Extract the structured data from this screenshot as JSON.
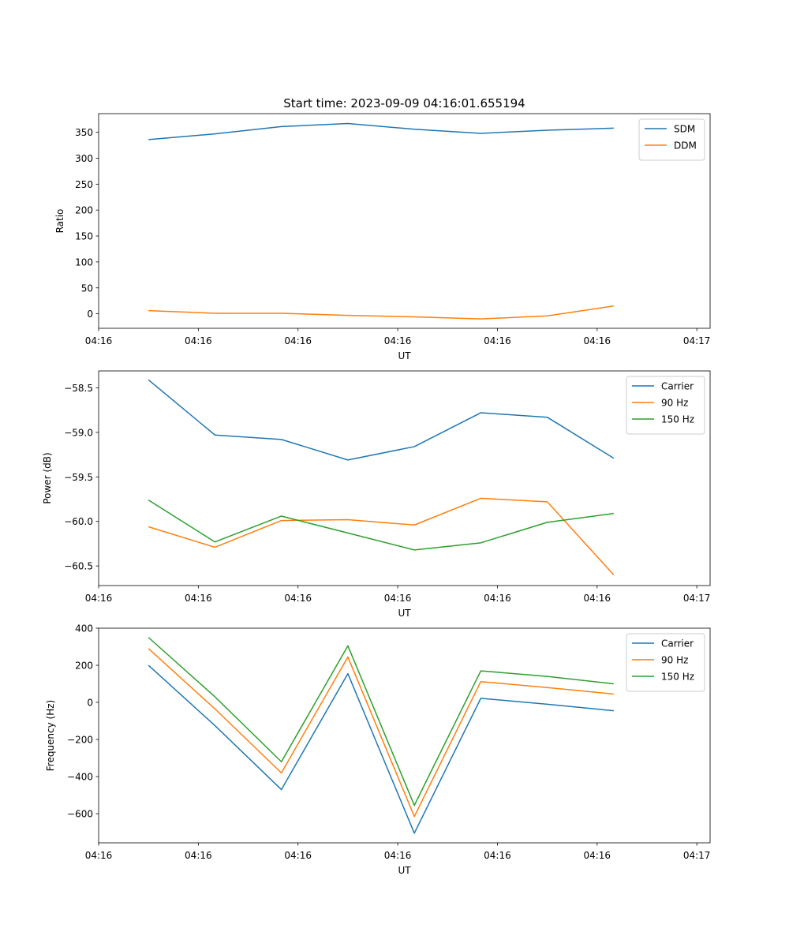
{
  "figure_title": "Start time: 2023-09-09 04:16:01.655194",
  "chart_data": [
    {
      "type": "line",
      "title": "Start time: 2023-09-09 04:16:01.655194",
      "xlabel": "UT",
      "ylabel": "Ratio",
      "x": [
        0,
        1,
        2,
        3,
        4,
        5,
        6,
        7
      ],
      "xlim": [
        -0.75,
        8.45
      ],
      "x_ticks": [
        -0.75,
        0.75,
        2.25,
        3.75,
        5.25,
        6.75,
        8.25
      ],
      "x_tick_labels": [
        "04:16",
        "04:16",
        "04:16",
        "04:16",
        "04:16",
        "04:16",
        "04:17"
      ],
      "ylim": [
        -28,
        386
      ],
      "y_ticks": [
        0,
        50,
        100,
        150,
        200,
        250,
        300,
        350
      ],
      "y_tick_labels": [
        "0",
        "50",
        "100",
        "150",
        "200",
        "250",
        "300",
        "350"
      ],
      "legend_position": "top-right",
      "series": [
        {
          "name": "SDM",
          "color": "#1f77b4",
          "values": [
            336,
            347,
            361,
            367,
            356,
            348,
            354,
            358
          ]
        },
        {
          "name": "DDM",
          "color": "#ff7f0e",
          "values": [
            6,
            1,
            1,
            -3,
            -6,
            -10,
            -4,
            15
          ]
        }
      ]
    },
    {
      "type": "line",
      "title": "",
      "xlabel": "UT",
      "ylabel": "Power (dB)",
      "x": [
        0,
        1,
        2,
        3,
        4,
        5,
        6,
        7
      ],
      "xlim": [
        -0.75,
        8.45
      ],
      "x_ticks": [
        -0.75,
        0.75,
        2.25,
        3.75,
        5.25,
        6.75,
        8.25
      ],
      "x_tick_labels": [
        "04:16",
        "04:16",
        "04:16",
        "04:16",
        "04:16",
        "04:16",
        "04:17"
      ],
      "ylim": [
        -60.72,
        -58.31
      ],
      "y_ticks": [
        -60.5,
        -60.0,
        -59.5,
        -59.0,
        -58.5
      ],
      "y_tick_labels": [
        "−60.5",
        "−60.0",
        "−59.5",
        "−59.0",
        "−58.5"
      ],
      "legend_position": "top-right",
      "series": [
        {
          "name": "Carrier",
          "color": "#1f77b4",
          "values": [
            -58.41,
            -59.03,
            -59.08,
            -59.31,
            -59.16,
            -58.78,
            -58.83,
            -59.29
          ]
        },
        {
          "name": "90 Hz",
          "color": "#ff7f0e",
          "values": [
            -60.06,
            -60.29,
            -59.99,
            -59.98,
            -60.04,
            -59.74,
            -59.78,
            -60.6
          ]
        },
        {
          "name": "150 Hz",
          "color": "#2ca02c",
          "values": [
            -59.76,
            -60.23,
            -59.94,
            -60.13,
            -60.32,
            -60.24,
            -60.01,
            -59.91
          ]
        }
      ]
    },
    {
      "type": "line",
      "title": "",
      "xlabel": "UT",
      "ylabel": "Frequency (Hz)",
      "x": [
        0,
        1,
        2,
        3,
        4,
        5,
        6,
        7
      ],
      "xlim": [
        -0.75,
        8.45
      ],
      "x_ticks": [
        -0.75,
        0.75,
        2.25,
        3.75,
        5.25,
        6.75,
        8.25
      ],
      "x_tick_labels": [
        "04:16",
        "04:16",
        "04:16",
        "04:16",
        "04:16",
        "04:16",
        "04:17"
      ],
      "ylim": [
        -757,
        400
      ],
      "y_ticks": [
        -600,
        -400,
        -200,
        0,
        200,
        400
      ],
      "y_tick_labels": [
        "−600",
        "−400",
        "−200",
        "0",
        "200",
        "400"
      ],
      "legend_position": "top-right",
      "series": [
        {
          "name": "Carrier",
          "color": "#1f77b4",
          "values": [
            200,
            -125,
            -470,
            155,
            -705,
            22,
            -10,
            -45
          ]
        },
        {
          "name": "90 Hz",
          "color": "#ff7f0e",
          "values": [
            290,
            -35,
            -380,
            245,
            -615,
            112,
            80,
            45
          ]
        },
        {
          "name": "150 Hz",
          "color": "#2ca02c",
          "values": [
            350,
            30,
            -320,
            305,
            -555,
            170,
            140,
            100
          ]
        }
      ]
    }
  ]
}
